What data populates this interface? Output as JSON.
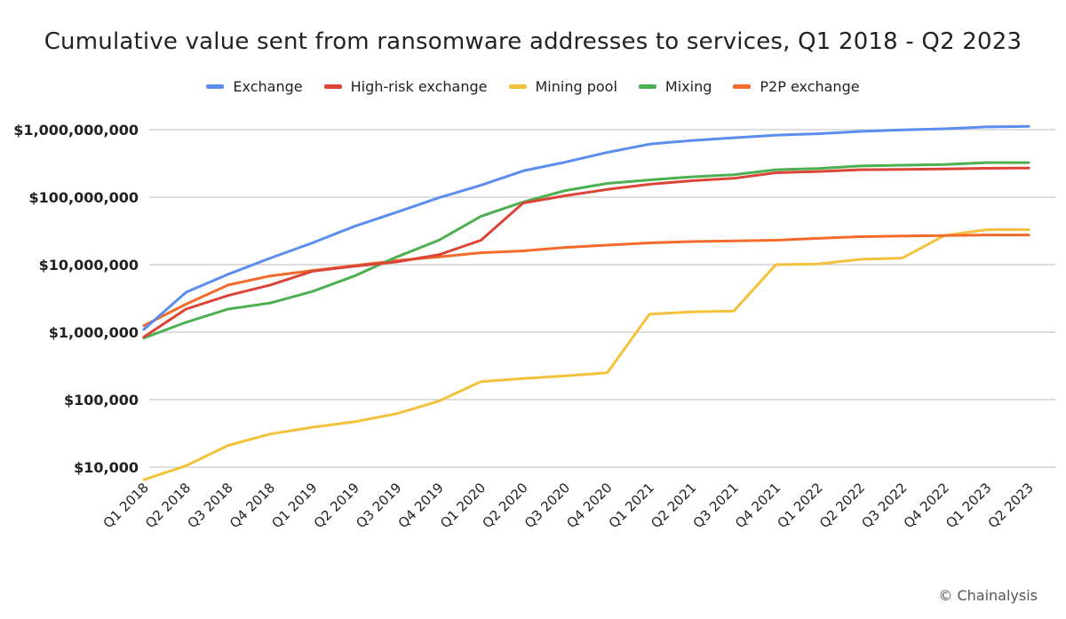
{
  "chart_data": {
    "type": "line",
    "title": "Cumulative value sent from ransomware addresses to services, Q1 2018 - Q2 2023",
    "xlabel": "",
    "ylabel": "",
    "y_scale": "log",
    "ylim": [
      6000,
      1200000000
    ],
    "y_ticks": [
      10000,
      100000,
      1000000,
      10000000,
      100000000,
      1000000000
    ],
    "y_tick_labels": [
      "$10,000",
      "$100,000",
      "$1,000,000",
      "$10,000,000",
      "$100,000,000",
      "$1,000,000,000"
    ],
    "grid": "horizontal",
    "legend_position": "top",
    "categories": [
      "Q1 2018",
      "Q2 2018",
      "Q3 2018",
      "Q4 2018",
      "Q1 2019",
      "Q2 2019",
      "Q3 2019",
      "Q4 2019",
      "Q1 2020",
      "Q2 2020",
      "Q3 2020",
      "Q4 2020",
      "Q1 2021",
      "Q2 2021",
      "Q3 2021",
      "Q4 2021",
      "Q1 2022",
      "Q2 2022",
      "Q3 2022",
      "Q4 2022",
      "Q1 2023",
      "Q2 2023"
    ],
    "series": [
      {
        "name": "Exchange",
        "color": "#5b8def",
        "values": [
          1100000,
          3900000,
          7200000,
          12500000,
          21000000,
          37000000,
          60000000,
          98000000,
          150000000,
          245000000,
          330000000,
          460000000,
          610000000,
          690000000,
          760000000,
          830000000,
          870000000,
          940000000,
          990000000,
          1030000000,
          1100000000,
          1120000000
        ]
      },
      {
        "name": "High-risk exchange",
        "color": "#db4437",
        "values": [
          850000,
          2200000,
          3500000,
          5000000,
          8000000,
          9500000,
          11000000,
          14000000,
          23000000,
          82000000,
          105000000,
          130000000,
          155000000,
          175000000,
          190000000,
          230000000,
          240000000,
          255000000,
          258000000,
          262000000,
          268000000,
          270000000
        ]
      },
      {
        "name": "Mining pool",
        "color": "#f4c13b",
        "values": [
          6500,
          10500,
          21000,
          31000,
          39000,
          47000,
          62000,
          95000,
          185000,
          205000,
          225000,
          250000,
          1850000,
          2000000,
          2050000,
          10000000,
          10200000,
          12000000,
          12500000,
          27000000,
          33000000,
          33000000
        ]
      },
      {
        "name": "Mixing",
        "color": "#4caf50",
        "values": [
          820000,
          1400000,
          2200000,
          2700000,
          4000000,
          6800000,
          13000000,
          23000000,
          52000000,
          85000000,
          125000000,
          160000000,
          180000000,
          200000000,
          215000000,
          255000000,
          265000000,
          290000000,
          298000000,
          305000000,
          325000000,
          325000000
        ]
      },
      {
        "name": "P2P exchange",
        "color": "#f26b2a",
        "values": [
          1250000,
          2600000,
          5000000,
          6800000,
          8200000,
          9700000,
          11500000,
          13000000,
          15000000,
          16000000,
          18000000,
          19500000,
          21000000,
          22000000,
          22500000,
          23000000,
          24500000,
          26000000,
          26500000,
          27000000,
          27500000,
          27500000
        ]
      }
    ]
  },
  "credit": "© Chainalysis"
}
